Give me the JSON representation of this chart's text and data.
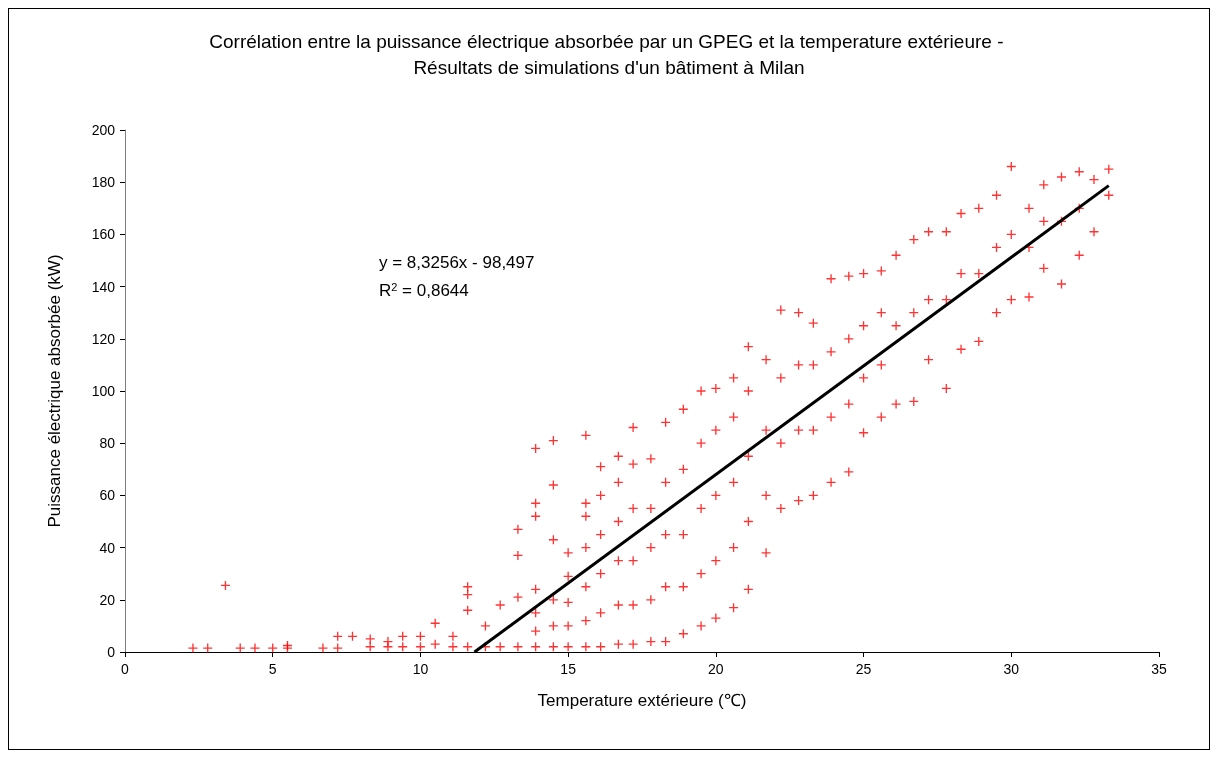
{
  "chart_data": {
    "type": "scatter",
    "title": "Corrélation entre la puissance électrique absorbée par un GPEG et la temperature extérieure - Résultats de simulations d'un bâtiment à Milan",
    "xlabel": "Temperature extérieure (℃)",
    "ylabel": "Puissance électrique absorbée (kW)",
    "annotations": [
      "y = 8,3256x - 98,497",
      "R$^{2}$ = 0,8644"
    ],
    "xlim": [
      0,
      35
    ],
    "xticks": [
      0,
      5,
      10,
      15,
      20,
      25,
      30,
      35
    ],
    "ylim": [
      0,
      200
    ],
    "yticks": [
      0,
      20,
      40,
      60,
      80,
      100,
      120,
      140,
      160,
      180,
      200
    ],
    "grid": false,
    "marker": "cross",
    "series": [
      {
        "color": "#ff0000",
        "x": [
          2.3,
          2.8,
          3.4,
          3.9,
          4.4,
          5.0,
          5.5,
          5.5,
          6.7,
          7.2,
          7.2,
          7.7,
          8.3,
          8.3,
          8.9,
          8.9,
          9.4,
          9.4,
          10.0,
          10.0,
          10.5,
          10.5,
          11.1,
          11.1,
          11.6,
          11.6,
          11.6,
          11.6,
          12.2,
          12.2,
          12.7,
          12.7,
          13.3,
          13.3,
          13.3,
          13.3,
          13.9,
          13.9,
          13.9,
          13.9,
          13.9,
          13.9,
          13.9,
          14.5,
          14.5,
          14.5,
          14.5,
          14.5,
          14.5,
          15.0,
          15.0,
          15.0,
          15.0,
          15.0,
          15.6,
          15.6,
          15.6,
          15.6,
          15.6,
          15.6,
          15.6,
          16.1,
          16.1,
          16.1,
          16.1,
          16.1,
          16.1,
          16.7,
          16.7,
          16.7,
          16.7,
          16.7,
          16.7,
          17.2,
          17.2,
          17.2,
          17.2,
          17.2,
          17.2,
          17.8,
          17.8,
          17.8,
          17.8,
          17.8,
          18.3,
          18.3,
          18.3,
          18.3,
          18.3,
          18.9,
          18.9,
          18.9,
          18.9,
          18.9,
          19.5,
          19.5,
          19.5,
          19.5,
          19.5,
          20.0,
          20.0,
          20.0,
          20.0,
          20.0,
          20.6,
          20.6,
          20.6,
          20.6,
          20.6,
          21.1,
          21.1,
          21.1,
          21.1,
          21.1,
          21.7,
          21.7,
          21.7,
          21.7,
          22.2,
          22.2,
          22.2,
          22.2,
          22.8,
          22.8,
          22.8,
          22.8,
          23.3,
          23.3,
          23.3,
          23.3,
          23.9,
          23.9,
          23.9,
          23.9,
          24.5,
          24.5,
          24.5,
          24.5,
          25.0,
          25.0,
          25.0,
          25.0,
          25.6,
          25.6,
          25.6,
          25.6,
          26.1,
          26.1,
          26.1,
          26.7,
          26.7,
          26.7,
          27.2,
          27.2,
          27.2,
          27.8,
          27.8,
          27.8,
          28.3,
          28.3,
          28.3,
          28.9,
          28.9,
          28.9,
          29.5,
          29.5,
          29.5,
          30.0,
          30.0,
          30.0,
          30.6,
          30.6,
          30.6,
          31.1,
          31.1,
          31.1,
          31.7,
          31.7,
          31.7,
          32.3,
          32.3,
          32.3,
          32.8,
          32.8,
          33.3,
          33.3
        ],
        "values": [
          1.5,
          1.5,
          25.5,
          1.5,
          1.5,
          1.5,
          1.5,
          2.5,
          1.5,
          1.5,
          6,
          6,
          2,
          5,
          2,
          4,
          2,
          6,
          2,
          6,
          3,
          11,
          2,
          6,
          2,
          16,
          22,
          25,
          2,
          10,
          2,
          18,
          2,
          21,
          37,
          47,
          2,
          8,
          15,
          24,
          52,
          57,
          78,
          2,
          10,
          20,
          43,
          64,
          81,
          2,
          10,
          19,
          29,
          38,
          2,
          12,
          25,
          40,
          52,
          57,
          83,
          2,
          15,
          30,
          45,
          60,
          71,
          3,
          18,
          35,
          50,
          65,
          75,
          3,
          18,
          35,
          55,
          72,
          86,
          4,
          20,
          40,
          55,
          74,
          4,
          25,
          45,
          65,
          88,
          7,
          25,
          45,
          70,
          93,
          10,
          30,
          55,
          80,
          100,
          13,
          35,
          60,
          85,
          101,
          17,
          40,
          65,
          90,
          105,
          24,
          50,
          75,
          100,
          117,
          38,
          60,
          85,
          112,
          55,
          80,
          105,
          131,
          58,
          85,
          110,
          130,
          60,
          85,
          110,
          126,
          65,
          90,
          115,
          143,
          69,
          95,
          120,
          144,
          84,
          105,
          125,
          145,
          90,
          110,
          130,
          146,
          95,
          125,
          152,
          96,
          130,
          158,
          112,
          135,
          161,
          101,
          135,
          161,
          116,
          145,
          168,
          119,
          145,
          170,
          130,
          155,
          175,
          135,
          160,
          186,
          136,
          155,
          170,
          147,
          165,
          179,
          141,
          165,
          182,
          152,
          170,
          184,
          161,
          181,
          175,
          185
        ]
      },
      {
        "type": "line",
        "color": "#000000",
        "marker": "none",
        "line_style": "solid",
        "x": [
          11.83,
          33.3
        ],
        "values": [
          0,
          178.7
        ]
      }
    ]
  }
}
